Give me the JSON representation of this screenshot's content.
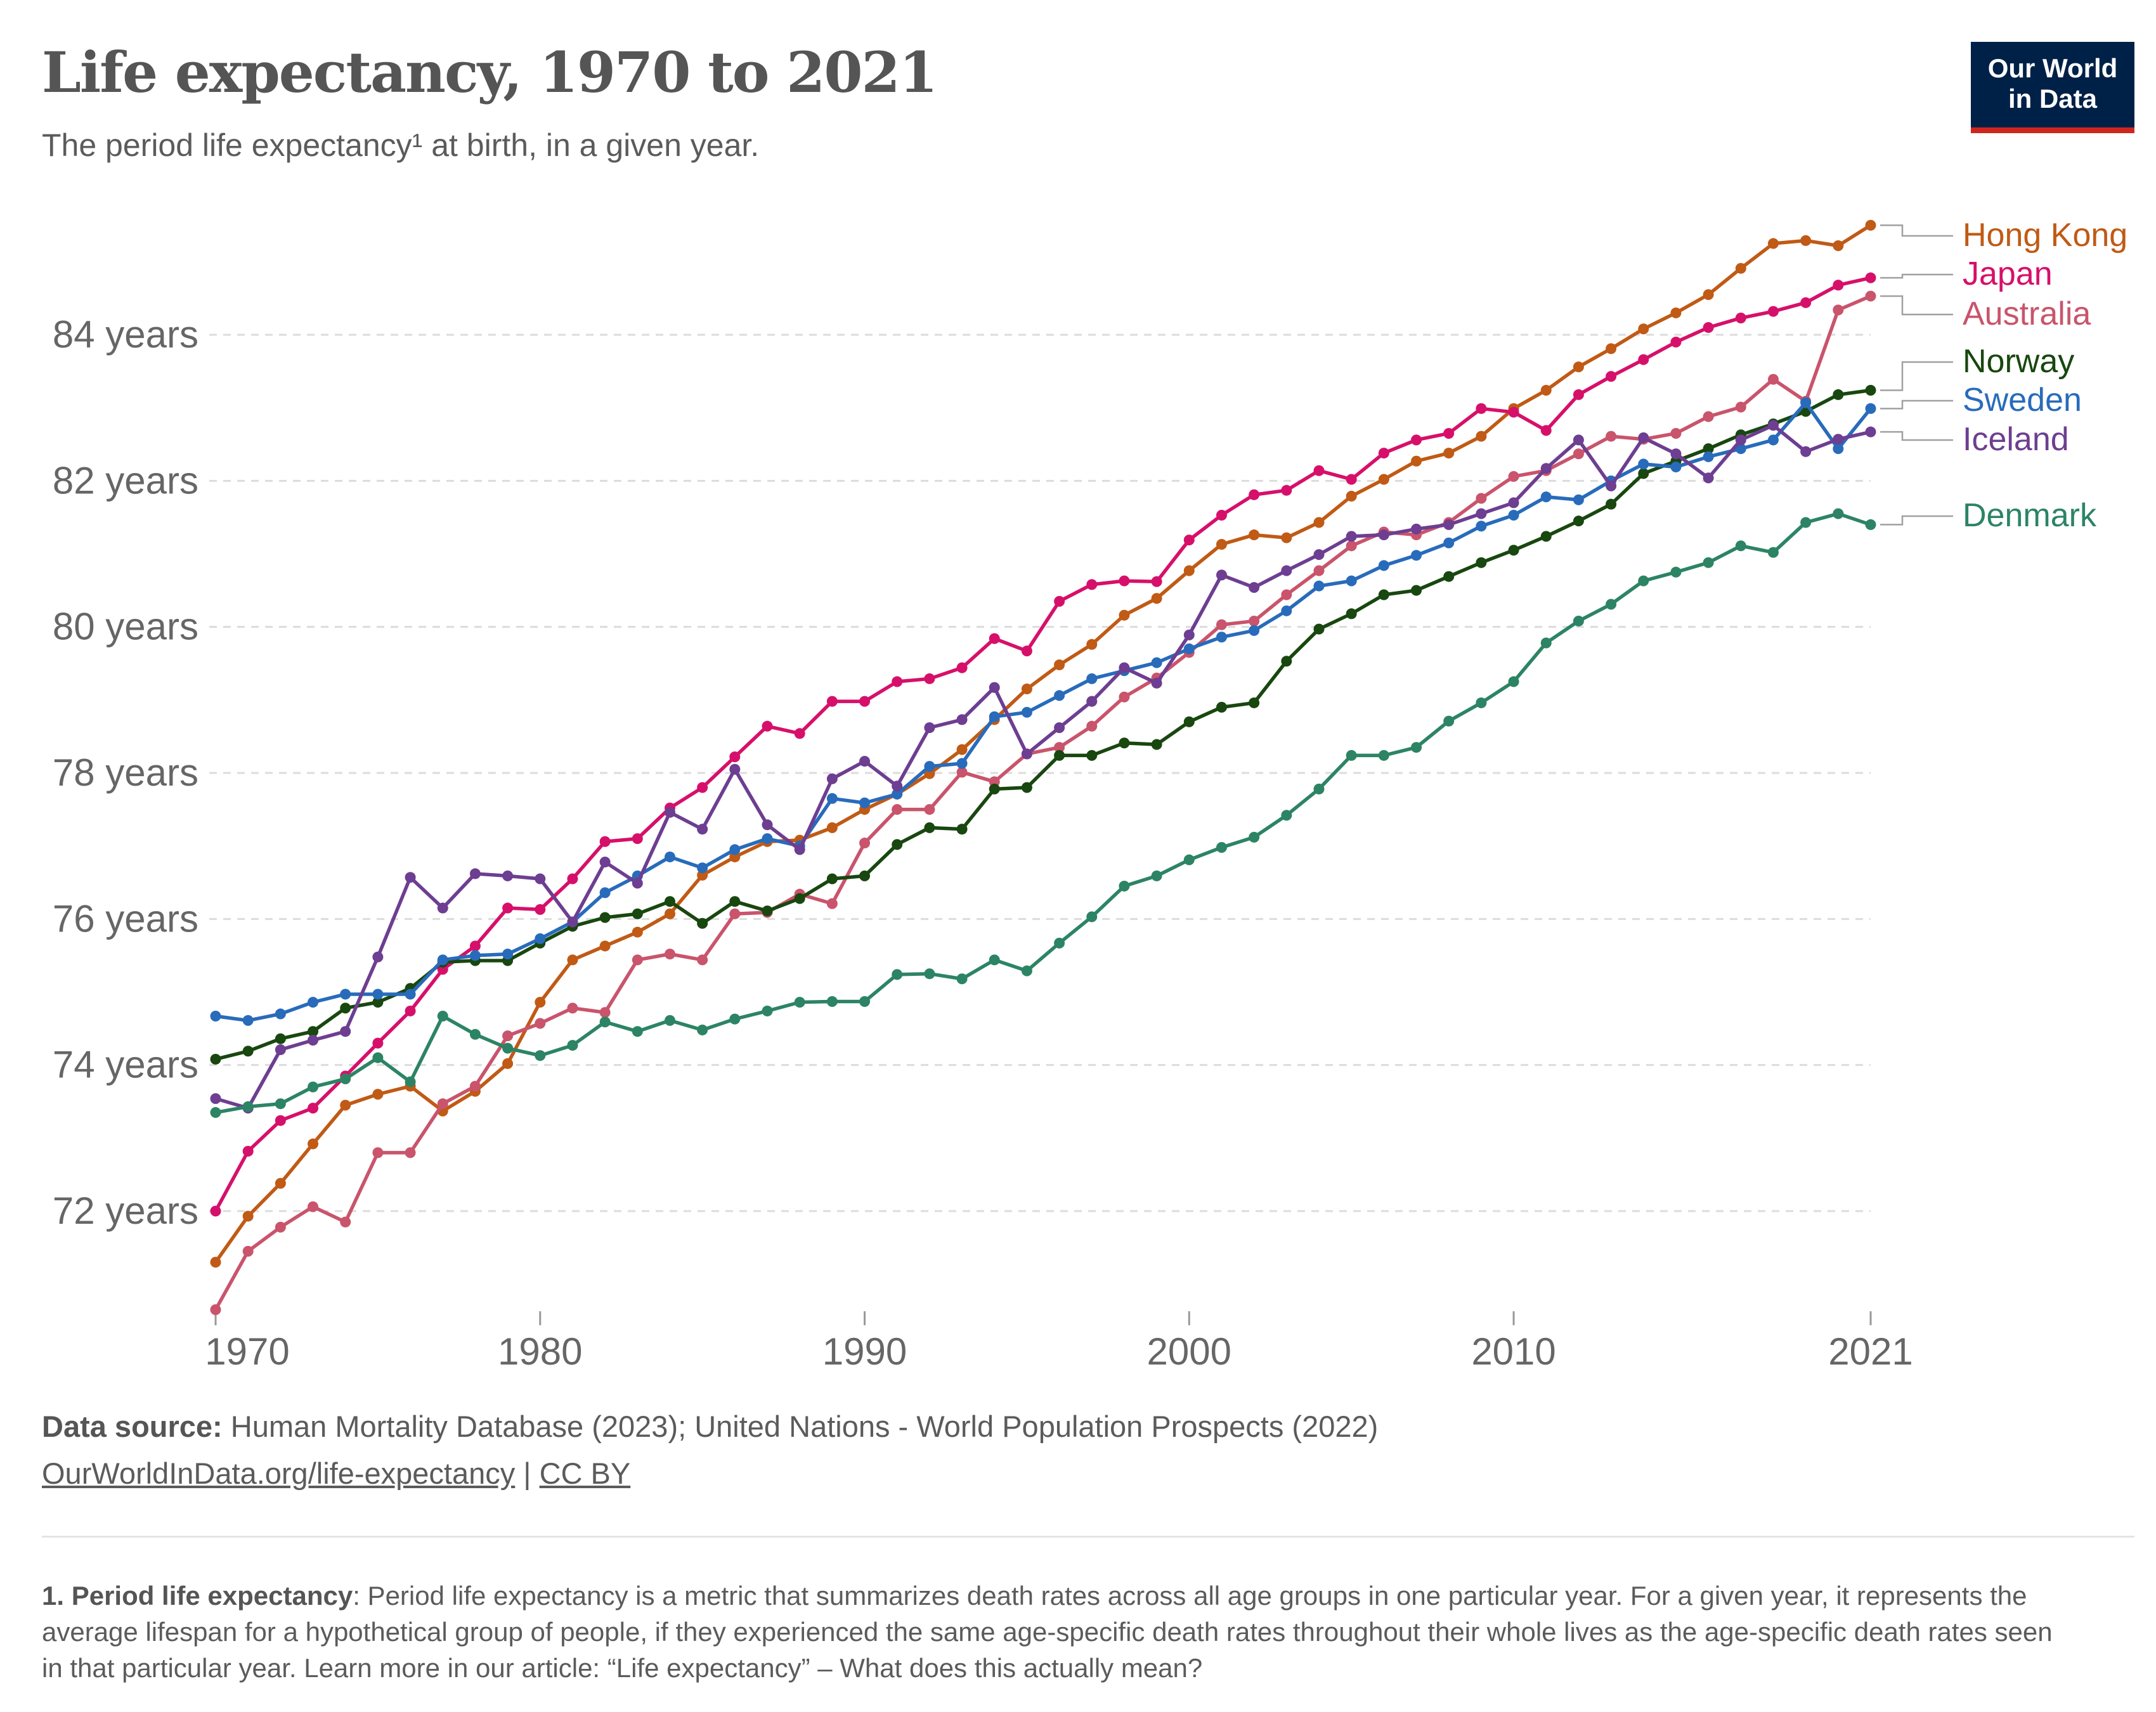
{
  "header": {
    "title": "Life expectancy, 1970 to 2021",
    "subtitle": "The period life expectancy¹ at birth, in a given year.",
    "logo_line1": "Our World",
    "logo_line2": "in Data"
  },
  "chart_data": {
    "type": "line",
    "title": "Life expectancy, 1970 to 2021",
    "xlabel": "",
    "ylabel": "",
    "xlim": [
      1970,
      2021
    ],
    "ylim": [
      70.5,
      85.6
    ],
    "grid": "horizontal dashed",
    "legend": "right (line-end labels)",
    "x_ticks": [
      1970,
      1980,
      1990,
      2000,
      2010,
      2021
    ],
    "x_tick_labels": [
      "1970",
      "1980",
      "1990",
      "2000",
      "2010",
      "2021"
    ],
    "y_ticks": [
      72,
      74,
      76,
      78,
      80,
      82,
      84
    ],
    "y_tick_labels": [
      "72 years",
      "74 years",
      "76 years",
      "78 years",
      "80 years",
      "82 years",
      "84 years"
    ],
    "x": [
      1970,
      1971,
      1972,
      1973,
      1974,
      1975,
      1976,
      1977,
      1978,
      1979,
      1980,
      1981,
      1982,
      1983,
      1984,
      1985,
      1986,
      1987,
      1988,
      1989,
      1990,
      1991,
      1992,
      1993,
      1994,
      1995,
      1996,
      1997,
      1998,
      1999,
      2000,
      2001,
      2002,
      2003,
      2004,
      2005,
      2006,
      2007,
      2008,
      2009,
      2010,
      2011,
      2012,
      2013,
      2014,
      2015,
      2016,
      2017,
      2018,
      2019,
      2020,
      2021
    ],
    "series": [
      {
        "name": "Hong Kong",
        "color": "#c05a15",
        "values": [
          71.3,
          71.93,
          72.38,
          72.92,
          73.45,
          73.6,
          73.71,
          73.37,
          73.64,
          74.02,
          74.86,
          75.44,
          75.63,
          75.82,
          76.07,
          76.6,
          76.85,
          77.06,
          77.08,
          77.25,
          77.5,
          77.71,
          77.99,
          78.32,
          78.73,
          79.15,
          79.48,
          79.76,
          80.16,
          80.39,
          80.77,
          81.13,
          81.26,
          81.22,
          81.43,
          81.79,
          82.02,
          82.27,
          82.38,
          82.61,
          82.99,
          83.24,
          83.56,
          83.81,
          84.08,
          84.3,
          84.55,
          84.91,
          85.25,
          85.29,
          85.22,
          85.5
        ]
      },
      {
        "name": "Japan",
        "color": "#d6106a",
        "values": [
          72.0,
          72.82,
          73.24,
          73.41,
          73.85,
          74.3,
          74.74,
          75.31,
          75.63,
          76.15,
          76.13,
          76.55,
          77.06,
          77.1,
          77.52,
          77.8,
          78.22,
          78.64,
          78.54,
          78.98,
          78.98,
          79.25,
          79.29,
          79.44,
          79.84,
          79.67,
          80.35,
          80.58,
          80.63,
          80.62,
          81.19,
          81.53,
          81.81,
          81.87,
          82.14,
          82.02,
          82.38,
          82.56,
          82.65,
          82.99,
          82.94,
          82.69,
          83.18,
          83.43,
          83.66,
          83.9,
          84.1,
          84.23,
          84.32,
          84.44,
          84.68,
          84.78
        ]
      },
      {
        "name": "Australia",
        "color": "#c9546c",
        "values": [
          70.65,
          71.45,
          71.78,
          72.06,
          71.85,
          72.8,
          72.8,
          73.47,
          73.71,
          74.4,
          74.57,
          74.78,
          74.72,
          75.44,
          75.52,
          75.44,
          76.07,
          76.09,
          76.34,
          76.21,
          77.04,
          77.5,
          77.5,
          78.01,
          77.88,
          78.26,
          78.35,
          78.64,
          79.04,
          79.3,
          79.65,
          80.03,
          80.08,
          80.44,
          80.77,
          81.11,
          81.3,
          81.26,
          81.43,
          81.76,
          82.06,
          82.14,
          82.37,
          82.61,
          82.57,
          82.65,
          82.88,
          83.01,
          83.39,
          83.09,
          84.34,
          84.53
        ]
      },
      {
        "name": "Norway",
        "color": "#18470f",
        "values": [
          74.08,
          74.19,
          74.36,
          74.46,
          74.78,
          74.86,
          75.05,
          75.41,
          75.43,
          75.43,
          75.67,
          75.9,
          76.02,
          76.07,
          76.24,
          75.94,
          76.24,
          76.11,
          76.28,
          76.55,
          76.59,
          77.02,
          77.25,
          77.23,
          77.78,
          77.8,
          78.24,
          78.24,
          78.41,
          78.39,
          78.7,
          78.9,
          78.96,
          79.53,
          79.97,
          80.18,
          80.44,
          80.5,
          80.69,
          80.88,
          81.05,
          81.24,
          81.45,
          81.68,
          82.1,
          82.27,
          82.44,
          82.63,
          82.78,
          82.95,
          83.18,
          83.24
        ]
      },
      {
        "name": "Sweden",
        "color": "#286bbb",
        "values": [
          74.67,
          74.61,
          74.7,
          74.86,
          74.97,
          74.97,
          74.97,
          75.44,
          75.5,
          75.52,
          75.73,
          75.96,
          76.36,
          76.59,
          76.85,
          76.7,
          76.95,
          77.1,
          77.0,
          77.65,
          77.59,
          77.71,
          78.09,
          78.13,
          78.77,
          78.83,
          79.06,
          79.29,
          79.4,
          79.51,
          79.7,
          79.86,
          79.95,
          80.22,
          80.56,
          80.63,
          80.84,
          80.98,
          81.15,
          81.38,
          81.53,
          81.78,
          81.74,
          82.0,
          82.23,
          82.19,
          82.33,
          82.44,
          82.56,
          83.07,
          82.44,
          82.99
        ]
      },
      {
        "name": "Iceland",
        "color": "#6d3e91",
        "values": [
          73.54,
          73.41,
          74.21,
          74.34,
          74.46,
          75.48,
          76.57,
          76.15,
          76.62,
          76.59,
          76.55,
          75.96,
          76.78,
          76.49,
          77.46,
          77.23,
          78.05,
          77.29,
          76.95,
          77.92,
          78.16,
          77.82,
          78.62,
          78.73,
          79.17,
          78.26,
          78.62,
          78.98,
          79.44,
          79.23,
          79.89,
          80.71,
          80.54,
          80.77,
          80.99,
          81.24,
          81.26,
          81.34,
          81.4,
          81.55,
          81.7,
          82.17,
          82.56,
          81.93,
          82.59,
          82.37,
          82.04,
          82.56,
          82.76,
          82.4,
          82.57,
          82.67
        ]
      },
      {
        "name": "Denmark",
        "color": "#2c8465",
        "values": [
          73.35,
          73.43,
          73.47,
          73.7,
          73.81,
          74.1,
          73.77,
          74.67,
          74.42,
          74.23,
          74.13,
          74.27,
          74.59,
          74.46,
          74.61,
          74.48,
          74.63,
          74.74,
          74.86,
          74.87,
          74.87,
          75.24,
          75.25,
          75.18,
          75.44,
          75.29,
          75.67,
          76.03,
          76.45,
          76.59,
          76.81,
          76.98,
          77.12,
          77.42,
          77.78,
          78.24,
          78.24,
          78.35,
          78.71,
          78.96,
          79.25,
          79.78,
          80.08,
          80.31,
          80.63,
          80.75,
          80.88,
          81.11,
          81.02,
          81.43,
          81.55,
          81.4
        ]
      }
    ]
  },
  "footer": {
    "source_label": "Data source:",
    "source_text": " Human Mortality Database (2023); United Nations - World Population Prospects (2022)",
    "url": "OurWorldInData.org/life-expectancy",
    "separator": " | ",
    "license": "CC BY",
    "footnote_label": "1. Period life expectancy",
    "footnote_text": ": Period life expectancy is a metric that summarizes death rates across all age groups in one particular year. For a given year, it represents the average lifespan for a hypothetical group of people, if they experienced the same age-specific death rates throughout their whole lives as the age-specific death rates seen in that particular year. Learn more in our article: ",
    "footnote_link": "“Life expectancy” – What does this actually mean?"
  }
}
